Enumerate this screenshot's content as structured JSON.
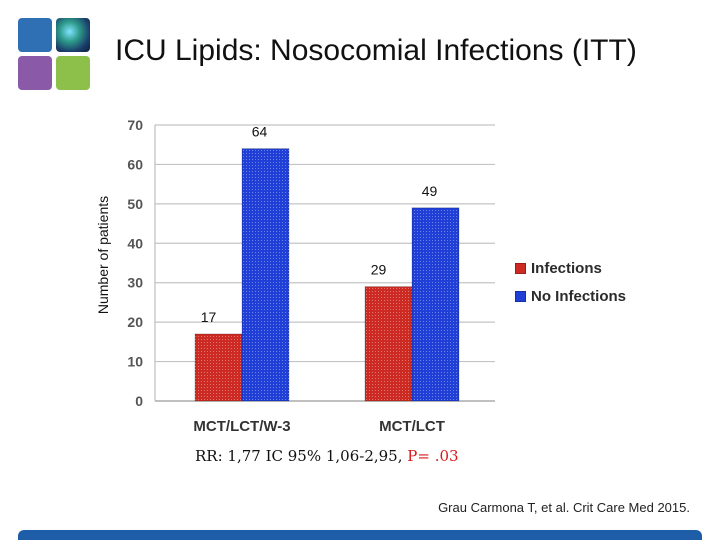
{
  "slide": {
    "title": "ICU Lipids: Nosocomial Infections (ITT)",
    "stats_prefix": "RR: 1,77 IC 95% 1,06-2,95,",
    "stats_p": "P= .03",
    "citation": "Grau Carmona T, et al. Crit Care Med 2015.",
    "logo_icon": "colored-tiles-logo"
  },
  "chart_data": {
    "type": "bar",
    "title": "",
    "xlabel": "",
    "ylabel": "Number of patients",
    "categories": [
      "MCT/LCT/W-3",
      "MCT/LCT"
    ],
    "series": [
      {
        "name": "Infections",
        "values": [
          17,
          29
        ],
        "color": "#cc2a22"
      },
      {
        "name": "No Infections",
        "values": [
          64,
          49
        ],
        "color": "#1f3fd6"
      }
    ],
    "ylim": [
      0,
      70
    ],
    "yticks": [
      0,
      10,
      20,
      30,
      40,
      50,
      60,
      70
    ],
    "grid": true,
    "legend_position": "right"
  }
}
